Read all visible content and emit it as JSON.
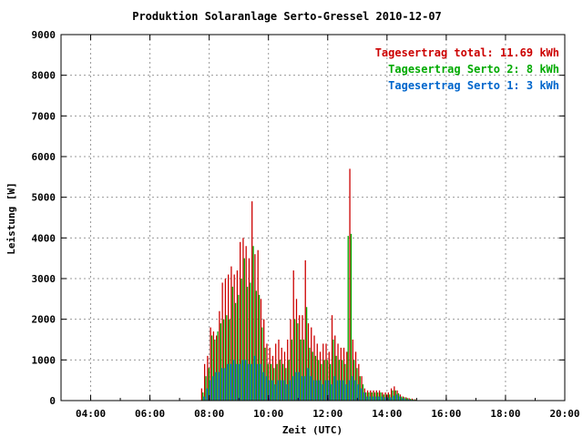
{
  "chart_data": {
    "type": "bar",
    "title": "Produktion Solaranlage Serto-Gressel 2010-12-07",
    "xlabel": "Zeit (UTC)",
    "ylabel": "Leistung [W]",
    "xlim": [
      "03:00",
      "20:00"
    ],
    "ylim": [
      0,
      9000
    ],
    "x_ticks": [
      "04:00",
      "06:00",
      "08:00",
      "10:00",
      "12:00",
      "14:00",
      "16:00",
      "18:00",
      "20:00"
    ],
    "y_ticks": [
      "0",
      "1000",
      "2000",
      "3000",
      "4000",
      "5000",
      "6000",
      "7000",
      "8000",
      "9000"
    ],
    "grid": true,
    "legend_position": "top-right",
    "legend": [
      {
        "label": "Tagesertrag total: 11.69 kWh",
        "color": "#cc0000"
      },
      {
        "label": "Tagesertrag Serto 2: 8 kWh",
        "color": "#00aa00"
      },
      {
        "label": "Tagesertrag Serto 1: 3 kWh",
        "color": "#0066cc"
      }
    ],
    "series_colors": {
      "total": "#cc0000",
      "serto2": "#00aa00",
      "serto1": "#0066cc"
    },
    "series": [
      {
        "name": "Tagesertrag total: 11.69 kWh",
        "color": "#cc0000",
        "values": [
          [
            7.8,
            300
          ],
          [
            7.9,
            900
          ],
          [
            8.0,
            1100
          ],
          [
            8.1,
            1800
          ],
          [
            8.2,
            1700
          ],
          [
            8.3,
            1600
          ],
          [
            8.4,
            2200
          ],
          [
            8.5,
            2900
          ],
          [
            8.6,
            3000
          ],
          [
            8.7,
            3100
          ],
          [
            8.8,
            3300
          ],
          [
            8.9,
            3100
          ],
          [
            9.0,
            3200
          ],
          [
            9.1,
            3900
          ],
          [
            9.2,
            4000
          ],
          [
            9.3,
            3800
          ],
          [
            9.4,
            3500
          ],
          [
            9.5,
            4900
          ],
          [
            9.6,
            3600
          ],
          [
            9.7,
            3700
          ],
          [
            9.8,
            2500
          ],
          [
            9.9,
            2000
          ],
          [
            10.0,
            1400
          ],
          [
            10.1,
            1300
          ],
          [
            10.2,
            1100
          ],
          [
            10.3,
            1400
          ],
          [
            10.4,
            1500
          ],
          [
            10.5,
            1300
          ],
          [
            10.6,
            1200
          ],
          [
            10.7,
            1500
          ],
          [
            10.8,
            2000
          ],
          [
            10.9,
            3200
          ],
          [
            11.0,
            2500
          ],
          [
            11.1,
            2100
          ],
          [
            11.2,
            2100
          ],
          [
            11.3,
            3450
          ],
          [
            11.4,
            1900
          ],
          [
            11.5,
            1800
          ],
          [
            11.6,
            1600
          ],
          [
            11.7,
            1400
          ],
          [
            11.8,
            1200
          ],
          [
            11.9,
            1400
          ],
          [
            12.0,
            1400
          ],
          [
            12.1,
            1200
          ],
          [
            12.2,
            2100
          ],
          [
            12.3,
            1600
          ],
          [
            12.4,
            1400
          ],
          [
            12.5,
            1300
          ],
          [
            12.6,
            1300
          ],
          [
            12.7,
            1200
          ],
          [
            12.8,
            5700
          ],
          [
            12.9,
            1500
          ],
          [
            13.0,
            1200
          ],
          [
            13.1,
            900
          ],
          [
            13.2,
            600
          ],
          [
            13.3,
            300
          ],
          [
            13.4,
            250
          ],
          [
            13.5,
            250
          ],
          [
            13.6,
            250
          ],
          [
            13.7,
            250
          ],
          [
            13.8,
            250
          ],
          [
            13.9,
            200
          ],
          [
            14.0,
            200
          ],
          [
            14.1,
            200
          ],
          [
            14.2,
            300
          ],
          [
            14.3,
            350
          ],
          [
            14.4,
            250
          ],
          [
            14.5,
            150
          ],
          [
            14.6,
            100
          ],
          [
            14.7,
            80
          ],
          [
            14.8,
            60
          ],
          [
            14.9,
            50
          ],
          [
            15.0,
            30
          ]
        ]
      },
      {
        "name": "Tagesertrag Serto 2: 8 kWh",
        "color": "#00aa00",
        "values": [
          [
            7.8,
            200
          ],
          [
            7.9,
            600
          ],
          [
            8.0,
            800
          ],
          [
            8.1,
            1600
          ],
          [
            8.2,
            1500
          ],
          [
            8.3,
            1700
          ],
          [
            8.4,
            1900
          ],
          [
            8.5,
            2000
          ],
          [
            8.6,
            2100
          ],
          [
            8.7,
            2000
          ],
          [
            8.8,
            2800
          ],
          [
            8.9,
            2400
          ],
          [
            9.0,
            2600
          ],
          [
            9.1,
            3000
          ],
          [
            9.2,
            3500
          ],
          [
            9.3,
            2800
          ],
          [
            9.4,
            2900
          ],
          [
            9.5,
            3800
          ],
          [
            9.6,
            2700
          ],
          [
            9.7,
            2600
          ],
          [
            9.8,
            1800
          ],
          [
            9.9,
            1300
          ],
          [
            10.0,
            900
          ],
          [
            10.1,
            900
          ],
          [
            10.2,
            800
          ],
          [
            10.3,
            900
          ],
          [
            10.4,
            1000
          ],
          [
            10.5,
            900
          ],
          [
            10.6,
            800
          ],
          [
            10.7,
            1000
          ],
          [
            10.8,
            1500
          ],
          [
            10.9,
            2000
          ],
          [
            11.0,
            1900
          ],
          [
            11.1,
            1500
          ],
          [
            11.2,
            1500
          ],
          [
            11.3,
            2300
          ],
          [
            11.4,
            1300
          ],
          [
            11.5,
            1200
          ],
          [
            11.6,
            1100
          ],
          [
            11.7,
            1000
          ],
          [
            11.8,
            900
          ],
          [
            11.9,
            1000
          ],
          [
            12.0,
            1000
          ],
          [
            12.1,
            900
          ],
          [
            12.2,
            1500
          ],
          [
            12.3,
            1100
          ],
          [
            12.4,
            1000
          ],
          [
            12.5,
            1000
          ],
          [
            12.6,
            900
          ],
          [
            12.7,
            4050
          ],
          [
            12.8,
            4100
          ],
          [
            12.9,
            1000
          ],
          [
            13.0,
            800
          ],
          [
            13.1,
            600
          ],
          [
            13.2,
            400
          ],
          [
            13.3,
            200
          ],
          [
            13.4,
            200
          ],
          [
            13.5,
            200
          ],
          [
            13.6,
            200
          ],
          [
            13.7,
            200
          ],
          [
            13.8,
            200
          ],
          [
            13.9,
            150
          ],
          [
            14.0,
            150
          ],
          [
            14.1,
            150
          ],
          [
            14.2,
            250
          ],
          [
            14.3,
            250
          ],
          [
            14.4,
            180
          ],
          [
            14.5,
            100
          ],
          [
            14.6,
            80
          ],
          [
            14.7,
            60
          ],
          [
            14.8,
            40
          ],
          [
            14.9,
            30
          ],
          [
            15.0,
            20
          ]
        ]
      },
      {
        "name": "Tagesertrag Serto 1: 3 kWh",
        "color": "#0066cc",
        "values": [
          [
            7.8,
            100
          ],
          [
            7.9,
            300
          ],
          [
            8.0,
            500
          ],
          [
            8.1,
            600
          ],
          [
            8.2,
            700
          ],
          [
            8.3,
            700
          ],
          [
            8.4,
            800
          ],
          [
            8.5,
            800
          ],
          [
            8.6,
            900
          ],
          [
            8.7,
            900
          ],
          [
            8.8,
            1000
          ],
          [
            8.9,
            900
          ],
          [
            9.0,
            900
          ],
          [
            9.1,
            1000
          ],
          [
            9.2,
            1000
          ],
          [
            9.3,
            900
          ],
          [
            9.4,
            900
          ],
          [
            9.5,
            1100
          ],
          [
            9.6,
            900
          ],
          [
            9.7,
            900
          ],
          [
            9.8,
            700
          ],
          [
            9.9,
            600
          ],
          [
            10.0,
            500
          ],
          [
            10.1,
            500
          ],
          [
            10.2,
            400
          ],
          [
            10.3,
            500
          ],
          [
            10.4,
            500
          ],
          [
            10.5,
            500
          ],
          [
            10.6,
            400
          ],
          [
            10.7,
            500
          ],
          [
            10.8,
            600
          ],
          [
            10.9,
            700
          ],
          [
            11.0,
            700
          ],
          [
            11.1,
            600
          ],
          [
            11.2,
            600
          ],
          [
            11.3,
            800
          ],
          [
            11.4,
            600
          ],
          [
            11.5,
            500
          ],
          [
            11.6,
            500
          ],
          [
            11.7,
            500
          ],
          [
            11.8,
            400
          ],
          [
            11.9,
            500
          ],
          [
            12.0,
            500
          ],
          [
            12.1,
            400
          ],
          [
            12.2,
            600
          ],
          [
            12.3,
            500
          ],
          [
            12.4,
            500
          ],
          [
            12.5,
            500
          ],
          [
            12.6,
            400
          ],
          [
            12.7,
            500
          ],
          [
            12.8,
            600
          ],
          [
            12.9,
            500
          ],
          [
            13.0,
            400
          ],
          [
            13.1,
            300
          ],
          [
            13.2,
            200
          ],
          [
            13.3,
            100
          ],
          [
            13.4,
            100
          ],
          [
            13.5,
            100
          ],
          [
            13.6,
            100
          ],
          [
            13.7,
            100
          ],
          [
            13.8,
            100
          ],
          [
            13.9,
            80
          ],
          [
            14.0,
            80
          ],
          [
            14.1,
            80
          ],
          [
            14.2,
            120
          ],
          [
            14.3,
            150
          ],
          [
            14.4,
            100
          ],
          [
            14.5,
            60
          ],
          [
            14.6,
            40
          ],
          [
            14.7,
            30
          ],
          [
            14.8,
            20
          ],
          [
            14.9,
            15
          ],
          [
            15.0,
            10
          ]
        ]
      }
    ]
  }
}
